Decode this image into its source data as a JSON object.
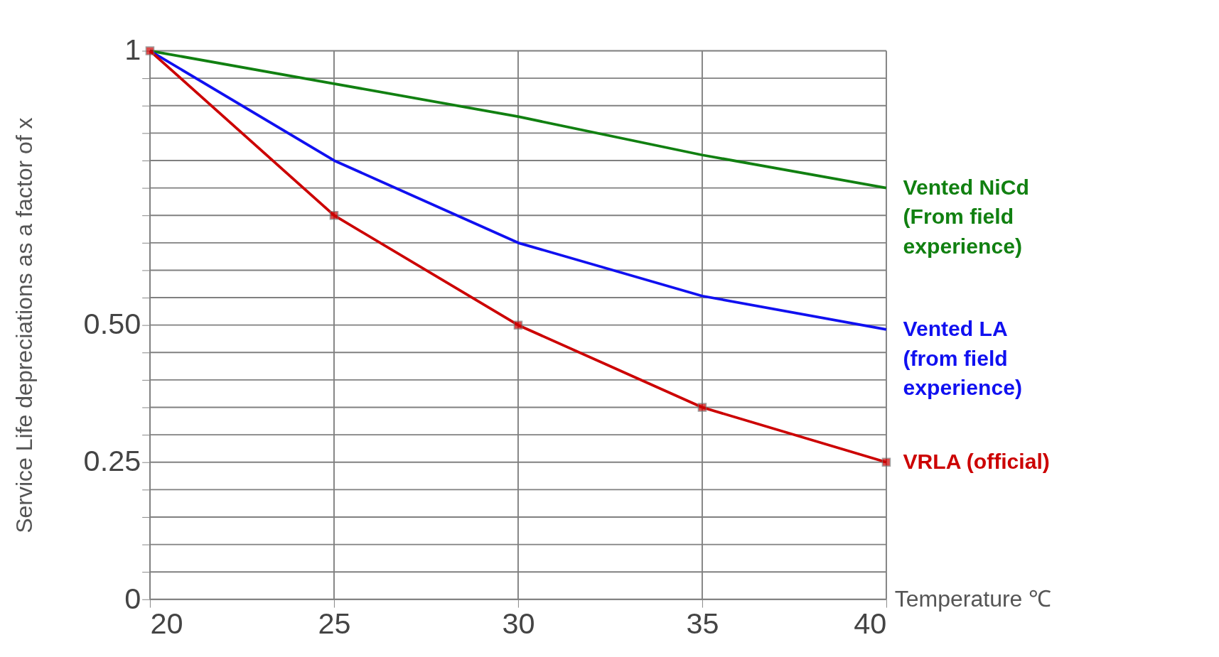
{
  "chart_data": {
    "type": "line",
    "xlabel": "Temperature ℃",
    "ylabel": "Service Life depreciations as a factor of x",
    "x": [
      20,
      25,
      30,
      35,
      40
    ],
    "xlim": [
      20,
      40
    ],
    "xticks": [
      20,
      25,
      30,
      35,
      40
    ],
    "ylim": [
      0,
      1
    ],
    "yticks": [
      0,
      {
        "value": 0.05,
        "label": null
      },
      {
        "value": 0.1,
        "label": null
      },
      {
        "value": 0.15,
        "label": null
      },
      {
        "value": 0.2,
        "label": null
      },
      0.25,
      {
        "value": 0.3,
        "label": null
      },
      {
        "value": 0.35,
        "label": null
      },
      {
        "value": 0.4,
        "label": null
      },
      {
        "value": 0.45,
        "label": null
      },
      {
        "value": 0.5,
        "label": "0.50"
      },
      {
        "value": 0.55,
        "label": null
      },
      {
        "value": 0.6,
        "label": null
      },
      {
        "value": 0.65,
        "label": null
      },
      {
        "value": 0.7,
        "label": null
      },
      {
        "value": 0.75,
        "label": null
      },
      {
        "value": 0.8,
        "label": null
      },
      {
        "value": 0.85,
        "label": null
      },
      {
        "value": 0.9,
        "label": null
      },
      {
        "value": 0.95,
        "label": null
      },
      1
    ],
    "grid": true,
    "legend": false,
    "line_style": "solid",
    "series": [
      {
        "name": "Vented NiCd\n(From field\nexperience)",
        "color": "#118011",
        "marker": "none",
        "values": [
          1,
          0.94,
          0.88,
          0.81,
          0.75
        ]
      },
      {
        "name": "Vented LA\n(from field\nexperience)",
        "color": "#1010f0",
        "marker": "none",
        "values": [
          1,
          0.8,
          0.65,
          0.553,
          0.492
        ]
      },
      {
        "name": "VRLA (official)",
        "color": "#cc0000",
        "marker": "square",
        "values": [
          1,
          0.7,
          0.5,
          0.35,
          0.25
        ]
      }
    ]
  }
}
